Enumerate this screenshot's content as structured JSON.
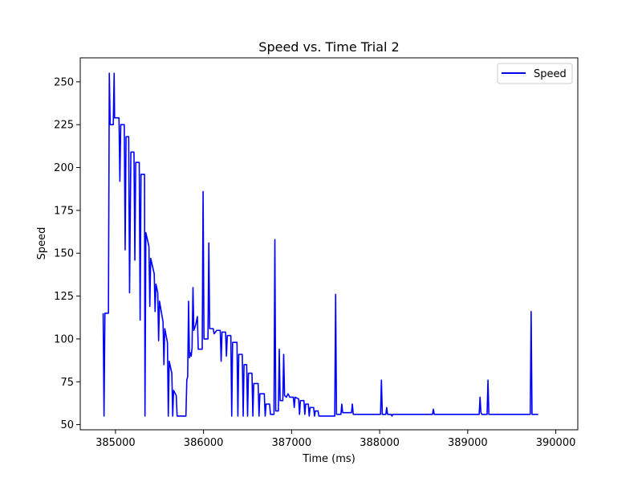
{
  "chart_data": {
    "type": "line",
    "title": "Speed vs. Time Trial 2",
    "xlabel": "Time (ms)",
    "ylabel": "Speed",
    "xlim": [
      384600,
      390250
    ],
    "ylim": [
      47,
      264
    ],
    "xticks": [
      385000,
      386000,
      387000,
      388000,
      389000,
      390000
    ],
    "yticks": [
      50,
      75,
      100,
      125,
      150,
      175,
      200,
      225,
      250
    ],
    "grid": false,
    "legend_position": "top-right",
    "series": [
      {
        "name": "Speed",
        "color": "#0000ff",
        "points": [
          [
            384860,
            115
          ],
          [
            384870,
            55
          ],
          [
            384880,
            115
          ],
          [
            384920,
            115
          ],
          [
            384930,
            255
          ],
          [
            384940,
            225
          ],
          [
            384975,
            225
          ],
          [
            384985,
            255
          ],
          [
            384990,
            229
          ],
          [
            385040,
            229
          ],
          [
            385050,
            192
          ],
          [
            385060,
            225
          ],
          [
            385100,
            225
          ],
          [
            385110,
            152
          ],
          [
            385120,
            218
          ],
          [
            385150,
            218
          ],
          [
            385160,
            127
          ],
          [
            385175,
            209
          ],
          [
            385210,
            209
          ],
          [
            385220,
            146
          ],
          [
            385230,
            203
          ],
          [
            385270,
            203
          ],
          [
            385280,
            111
          ],
          [
            385290,
            196
          ],
          [
            385330,
            196
          ],
          [
            385335,
            55
          ],
          [
            385345,
            162
          ],
          [
            385380,
            154
          ],
          [
            385390,
            119
          ],
          [
            385400,
            147
          ],
          [
            385440,
            138
          ],
          [
            385450,
            116
          ],
          [
            385460,
            132
          ],
          [
            385480,
            127
          ],
          [
            385490,
            99
          ],
          [
            385500,
            122
          ],
          [
            385540,
            110
          ],
          [
            385550,
            85
          ],
          [
            385560,
            106
          ],
          [
            385590,
            98
          ],
          [
            385600,
            55
          ],
          [
            385610,
            87
          ],
          [
            385640,
            80
          ],
          [
            385650,
            55
          ],
          [
            385660,
            70
          ],
          [
            385690,
            67
          ],
          [
            385700,
            55
          ],
          [
            385800,
            55
          ],
          [
            385810,
            76
          ],
          [
            385820,
            78
          ],
          [
            385830,
            122
          ],
          [
            385840,
            89
          ],
          [
            385850,
            92
          ],
          [
            385860,
            90
          ],
          [
            385870,
            95
          ],
          [
            385880,
            130
          ],
          [
            385890,
            105
          ],
          [
            385910,
            108
          ],
          [
            385930,
            113
          ],
          [
            385940,
            94
          ],
          [
            385985,
            94
          ],
          [
            385995,
            186
          ],
          [
            386005,
            100
          ],
          [
            386050,
            100
          ],
          [
            386060,
            156
          ],
          [
            386070,
            106
          ],
          [
            386110,
            106
          ],
          [
            386120,
            103
          ],
          [
            386150,
            105
          ],
          [
            386190,
            105
          ],
          [
            386200,
            87
          ],
          [
            386210,
            104
          ],
          [
            386250,
            104
          ],
          [
            386260,
            90
          ],
          [
            386270,
            102
          ],
          [
            386310,
            102
          ],
          [
            386320,
            55
          ],
          [
            386330,
            98
          ],
          [
            386380,
            98
          ],
          [
            386390,
            55
          ],
          [
            386400,
            91
          ],
          [
            386440,
            91
          ],
          [
            386450,
            55
          ],
          [
            386460,
            85
          ],
          [
            386490,
            85
          ],
          [
            386500,
            55
          ],
          [
            386510,
            80
          ],
          [
            386550,
            80
          ],
          [
            386560,
            55
          ],
          [
            386570,
            74
          ],
          [
            386620,
            74
          ],
          [
            386630,
            55
          ],
          [
            386640,
            68
          ],
          [
            386690,
            68
          ],
          [
            386700,
            55
          ],
          [
            386710,
            62
          ],
          [
            386750,
            62
          ],
          [
            386760,
            56
          ],
          [
            386800,
            56
          ],
          [
            386810,
            158
          ],
          [
            386820,
            58
          ],
          [
            386850,
            58
          ],
          [
            386860,
            94
          ],
          [
            386870,
            64
          ],
          [
            386900,
            64
          ],
          [
            386910,
            91
          ],
          [
            386920,
            67
          ],
          [
            386940,
            66
          ],
          [
            386960,
            68
          ],
          [
            386980,
            66
          ],
          [
            387020,
            66
          ],
          [
            387030,
            60
          ],
          [
            387040,
            66
          ],
          [
            387080,
            65
          ],
          [
            387090,
            56
          ],
          [
            387100,
            64
          ],
          [
            387140,
            64
          ],
          [
            387150,
            56
          ],
          [
            387160,
            62
          ],
          [
            387190,
            62
          ],
          [
            387200,
            55
          ],
          [
            387210,
            60
          ],
          [
            387250,
            60
          ],
          [
            387260,
            55
          ],
          [
            387270,
            58
          ],
          [
            387300,
            58
          ],
          [
            387310,
            55
          ],
          [
            387490,
            55
          ],
          [
            387500,
            126
          ],
          [
            387510,
            56
          ],
          [
            387560,
            56
          ],
          [
            387570,
            62
          ],
          [
            387580,
            57
          ],
          [
            387680,
            57
          ],
          [
            387690,
            62
          ],
          [
            387700,
            56
          ],
          [
            388010,
            56
          ],
          [
            388020,
            76
          ],
          [
            388030,
            56
          ],
          [
            388070,
            56
          ],
          [
            388080,
            60
          ],
          [
            388090,
            56
          ],
          [
            388130,
            56
          ],
          [
            388140,
            55
          ],
          [
            388150,
            56
          ],
          [
            388600,
            56
          ],
          [
            388610,
            59
          ],
          [
            388620,
            56
          ],
          [
            389130,
            56
          ],
          [
            389140,
            66
          ],
          [
            389150,
            57
          ],
          [
            389160,
            56
          ],
          [
            389220,
            56
          ],
          [
            389230,
            76
          ],
          [
            389240,
            56
          ],
          [
            389710,
            56
          ],
          [
            389720,
            116
          ],
          [
            389730,
            56
          ],
          [
            389800,
            56
          ]
        ]
      }
    ]
  }
}
